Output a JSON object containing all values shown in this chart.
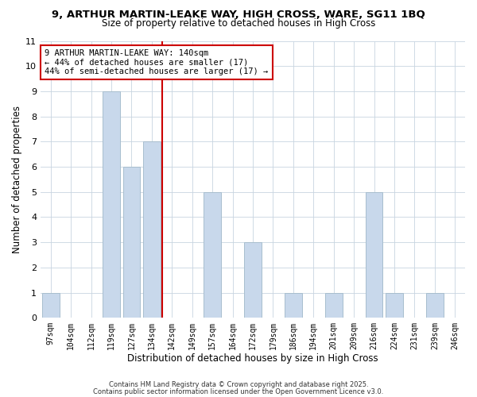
{
  "title_line1": "9, ARTHUR MARTIN-LEAKE WAY, HIGH CROSS, WARE, SG11 1BQ",
  "title_line2": "Size of property relative to detached houses in High Cross",
  "xlabel": "Distribution of detached houses by size in High Cross",
  "ylabel": "Number of detached properties",
  "bin_labels": [
    "97sqm",
    "104sqm",
    "112sqm",
    "119sqm",
    "127sqm",
    "134sqm",
    "142sqm",
    "149sqm",
    "157sqm",
    "164sqm",
    "172sqm",
    "179sqm",
    "186sqm",
    "194sqm",
    "201sqm",
    "209sqm",
    "216sqm",
    "224sqm",
    "231sqm",
    "239sqm",
    "246sqm"
  ],
  "bar_values": [
    1,
    0,
    0,
    9,
    6,
    7,
    0,
    0,
    5,
    0,
    3,
    0,
    1,
    0,
    1,
    0,
    5,
    1,
    0,
    1,
    0
  ],
  "bar_color": "#c8d8eb",
  "bar_edgecolor": "#a8bece",
  "reference_line_color": "#cc0000",
  "annotation_text": "9 ARTHUR MARTIN-LEAKE WAY: 140sqm\n← 44% of detached houses are smaller (17)\n44% of semi-detached houses are larger (17) →",
  "annotation_box_edgecolor": "#cc0000",
  "ylim": [
    0,
    11
  ],
  "yticks": [
    0,
    1,
    2,
    3,
    4,
    5,
    6,
    7,
    8,
    9,
    10,
    11
  ],
  "footer_line1": "Contains HM Land Registry data © Crown copyright and database right 2025.",
  "footer_line2": "Contains public sector information licensed under the Open Government Licence v3.0.",
  "background_color": "#ffffff",
  "grid_color": "#c8d4e0"
}
